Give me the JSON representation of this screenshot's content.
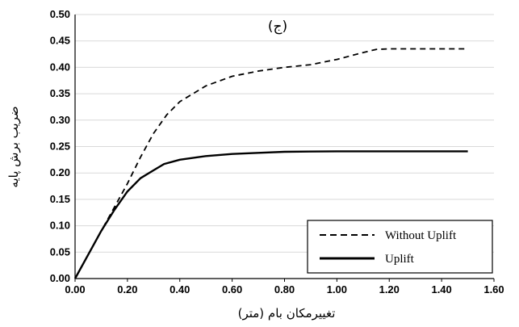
{
  "chart_data": {
    "type": "line",
    "panel_label": "(ج)",
    "xlabel": "تغییرمکان بام (متر)",
    "ylabel": "ضریب برش پایه",
    "xlim": [
      0,
      1.6
    ],
    "ylim": [
      0,
      0.5
    ],
    "xticks": [
      "0.00",
      "0.20",
      "0.40",
      "0.60",
      "0.80",
      "1.00",
      "1.20",
      "1.40",
      "1.60"
    ],
    "yticks": [
      "0.00",
      "0.05",
      "0.10",
      "0.15",
      "0.20",
      "0.25",
      "0.30",
      "0.35",
      "0.40",
      "0.45",
      "0.50"
    ],
    "grid": "horizontal",
    "legend_position": "bottom-right",
    "series": [
      {
        "name": "Without Uplift",
        "style": "dashed",
        "color": "#000000",
        "x": [
          0.0,
          0.05,
          0.1,
          0.15,
          0.2,
          0.25,
          0.3,
          0.35,
          0.4,
          0.5,
          0.6,
          0.7,
          0.8,
          0.9,
          1.0,
          1.1,
          1.15,
          1.2,
          1.3,
          1.4,
          1.5
        ],
        "y": [
          0.0,
          0.045,
          0.09,
          0.135,
          0.18,
          0.23,
          0.275,
          0.31,
          0.335,
          0.365,
          0.383,
          0.393,
          0.4,
          0.405,
          0.415,
          0.428,
          0.434,
          0.435,
          0.435,
          0.435,
          0.435
        ]
      },
      {
        "name": "Uplift",
        "style": "solid",
        "color": "#000000",
        "x": [
          0.0,
          0.05,
          0.1,
          0.15,
          0.2,
          0.25,
          0.3,
          0.34,
          0.4,
          0.5,
          0.6,
          0.7,
          0.8,
          1.0,
          1.2,
          1.4,
          1.5
        ],
        "y": [
          0.0,
          0.045,
          0.09,
          0.13,
          0.165,
          0.19,
          0.205,
          0.217,
          0.225,
          0.232,
          0.236,
          0.238,
          0.24,
          0.241,
          0.241,
          0.241,
          0.241
        ]
      }
    ]
  }
}
